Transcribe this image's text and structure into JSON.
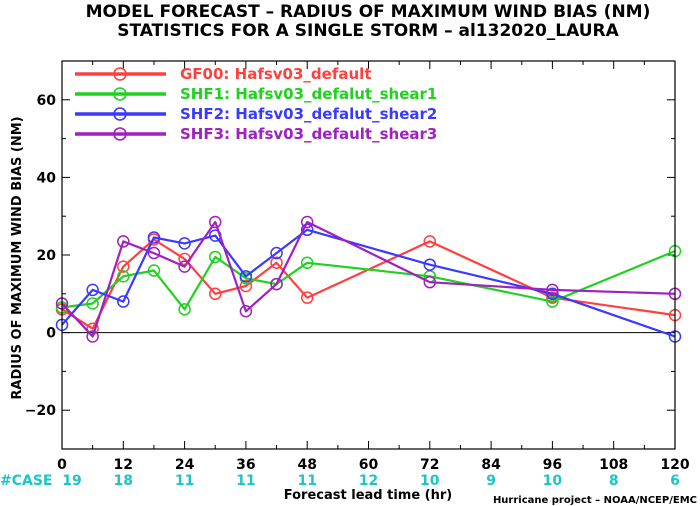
{
  "chart_data": {
    "type": "line",
    "title_line1": "MODEL FORECAST – RADIUS OF MAXIMUM WIND BIAS (NM)",
    "title_line2": "STATISTICS FOR A SINGLE STORM – al132020_LAURA",
    "ylabel": "RADIUS OF MAXIMUM WIND BIAS (NM)",
    "xlabel": "Forecast lead time (hr)",
    "credit": "Hurricane project – NOAA/NCEP/EMC",
    "case_label": "#CASE",
    "xlim": [
      0,
      120
    ],
    "ylim": [
      -30,
      70
    ],
    "x_ticks": [
      0,
      12,
      24,
      36,
      48,
      60,
      72,
      84,
      96,
      108,
      120
    ],
    "x_tick_labels": [
      "0",
      "12",
      "24",
      "36",
      "48",
      "60",
      "72",
      "84",
      "96",
      "108",
      "120"
    ],
    "y_ticks": [
      -20,
      0,
      20,
      40,
      60
    ],
    "y_tick_labels": [
      "−20",
      "0",
      "20",
      "40",
      "60"
    ],
    "minor_x_every": 6,
    "zero_line": true,
    "legend_position": "top-left",
    "cases": [
      {
        "x": 0,
        "label": "19"
      },
      {
        "x": 12,
        "label": "18"
      },
      {
        "x": 24,
        "label": "11"
      },
      {
        "x": 36,
        "label": "11"
      },
      {
        "x": 48,
        "label": "11"
      },
      {
        "x": 60,
        "label": "12"
      },
      {
        "x": 72,
        "label": "10"
      },
      {
        "x": 84,
        "label": "9"
      },
      {
        "x": 96,
        "label": "10"
      },
      {
        "x": 108,
        "label": "8"
      },
      {
        "x": 120,
        "label": "6"
      }
    ],
    "x": [
      0,
      6,
      12,
      18,
      24,
      30,
      36,
      42,
      48,
      72,
      96,
      120
    ],
    "series": [
      {
        "name": "GF00: Hafsv03_default",
        "color": "#ff4040",
        "values": [
          6,
          1,
          17,
          24,
          19,
          10,
          12,
          18,
          9,
          23.5,
          9,
          4.5
        ]
      },
      {
        "name": "SHF1: Hafsv03_defalut_shear1",
        "color": "#1fd21f",
        "values": [
          6.5,
          7.5,
          14.5,
          16,
          6,
          19.5,
          14,
          12.5,
          18,
          14.5,
          8,
          21
        ]
      },
      {
        "name": "SHF2: Hafsv03_defalut_shear2",
        "color": "#3a3aff",
        "values": [
          2,
          11,
          8,
          24.5,
          23,
          25,
          14.5,
          20.5,
          26.5,
          17.5,
          10,
          -1
        ]
      },
      {
        "name": "SHF3: Hafsv03_default_shear3",
        "color": "#a020c0",
        "values": [
          7.5,
          -1,
          23.5,
          20.5,
          17,
          28.5,
          5.5,
          12.5,
          28.5,
          13,
          11,
          10
        ]
      }
    ],
    "case_color": "#1fc4c4"
  }
}
